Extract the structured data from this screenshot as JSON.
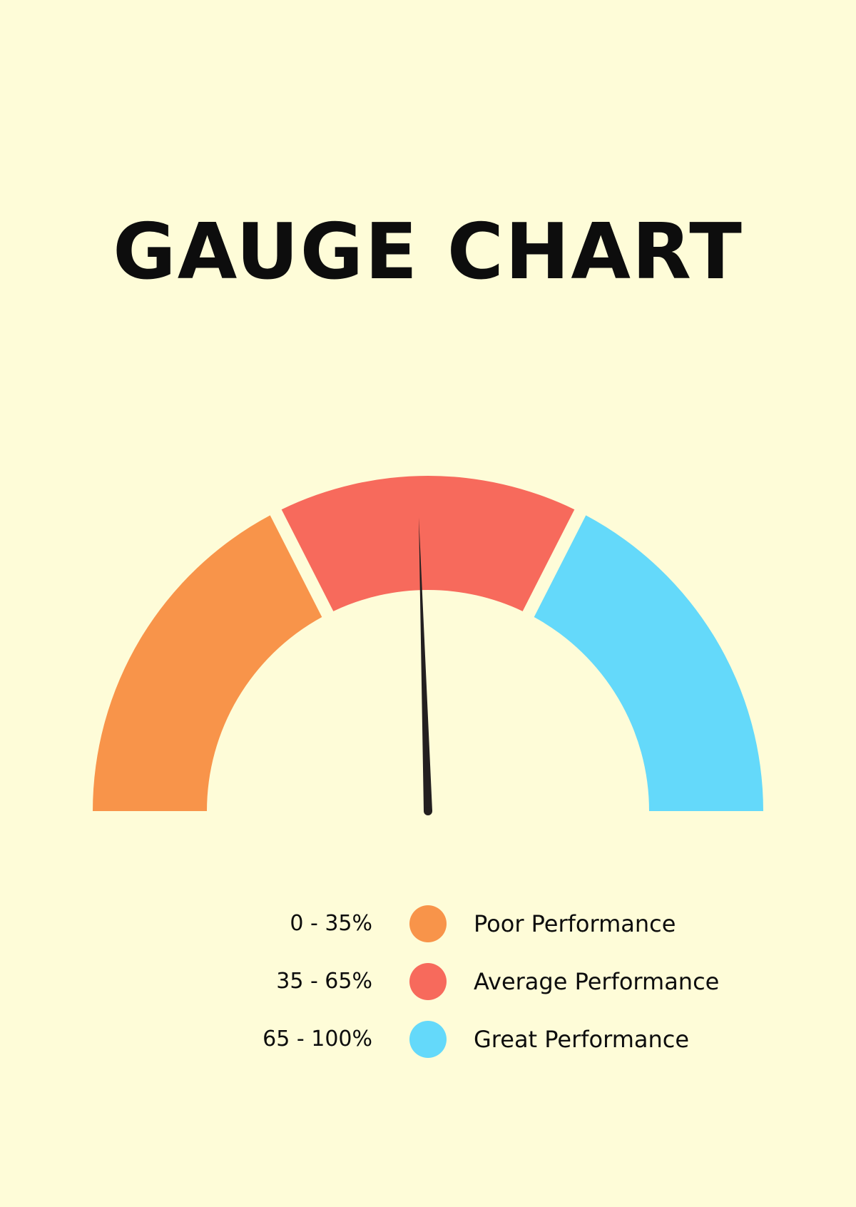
{
  "chart_data": {
    "type": "gauge",
    "title": "GAUGE CHART",
    "range": [
      0,
      100
    ],
    "value": 49,
    "bands": [
      {
        "range_label": "0 - 35%",
        "label": "Poor Performance",
        "from": 0,
        "to": 35,
        "color": "#F8944A"
      },
      {
        "range_label": "35 - 65%",
        "label": "Average Performance",
        "from": 35,
        "to": 65,
        "color": "#F76A5C"
      },
      {
        "range_label": "65 - 100%",
        "label": "Great Performance",
        "from": 65,
        "to": 100,
        "color": "#64D9FA"
      }
    ]
  },
  "colors": {
    "background": "#FEFCD8",
    "needle": "#231F20"
  }
}
